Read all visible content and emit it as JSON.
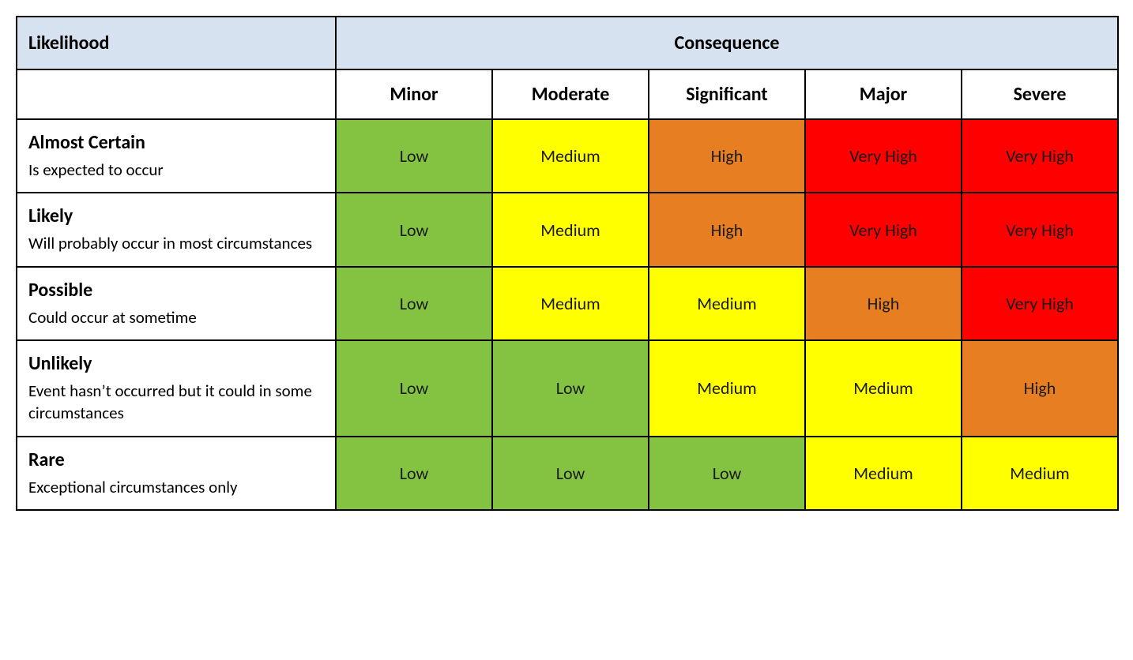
{
  "matrix": {
    "type": "heatmap",
    "header_likelihood": "Likelihood",
    "header_consequence": "Consequence",
    "header_bg": "#d7e2f0",
    "border_color": "#000000",
    "font_family": "Calibri, Arial, sans-serif",
    "header_fontsize": 24,
    "cell_fontsize": 22,
    "desc_fontsize": 21,
    "columns": [
      {
        "label": "Minor"
      },
      {
        "label": "Moderate"
      },
      {
        "label": "Significant"
      },
      {
        "label": "Major"
      },
      {
        "label": "Severe"
      }
    ],
    "risk_colors": {
      "Low": "#84c341",
      "Medium": "#ffff00",
      "High": "#e77e22",
      "Very High": "#ff0000"
    },
    "rows": [
      {
        "title": "Almost Certain",
        "desc": "Is expected to occur",
        "cells": [
          "Low",
          "Medium",
          "High",
          "Very High",
          "Very High"
        ]
      },
      {
        "title": "Likely",
        "desc": "Will probably occur in most circumstances",
        "cells": [
          "Low",
          "Medium",
          "High",
          "Very High",
          "Very High"
        ]
      },
      {
        "title": "Possible",
        "desc": "Could occur at sometime",
        "cells": [
          "Low",
          "Medium",
          "Medium",
          "High",
          "Very High"
        ]
      },
      {
        "title": "Unlikely",
        "desc": "Event hasn’t occurred but it could in some circumstances",
        "cells": [
          "Low",
          "Low",
          "Medium",
          "Medium",
          "High"
        ]
      },
      {
        "title": "Rare",
        "desc": "Exceptional circumstances only",
        "cells": [
          "Low",
          "Low",
          "Low",
          "Medium",
          "Medium"
        ]
      }
    ],
    "col_width_label": 404,
    "col_width_data": 198
  }
}
